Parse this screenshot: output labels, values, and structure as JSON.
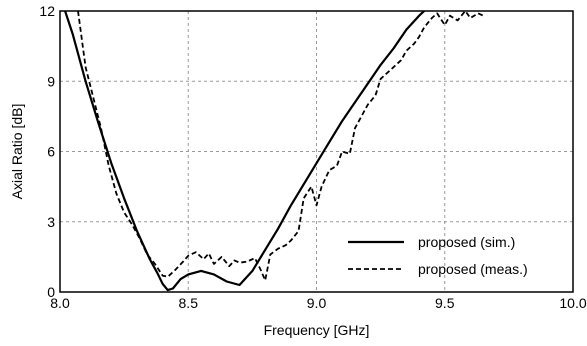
{
  "chart_data": {
    "type": "line",
    "title": "",
    "xlabel": "Frequency [GHz]",
    "ylabel": "Axial Ratio [dB]",
    "xlim": [
      8.0,
      10.0
    ],
    "ylim": [
      0,
      12
    ],
    "xticks": [
      "8.0",
      "8.5",
      "9.0",
      "9.5",
      "10.0"
    ],
    "yticks": [
      "0",
      "3",
      "6",
      "9",
      "12"
    ],
    "grid": true,
    "legend_position": "bottom-right",
    "series": [
      {
        "name": "proposed (sim.)",
        "style": "solid",
        "color": "#000000",
        "x": [
          8.02,
          8.05,
          8.1,
          8.15,
          8.2,
          8.25,
          8.3,
          8.35,
          8.38,
          8.4,
          8.42,
          8.44,
          8.47,
          8.5,
          8.55,
          8.6,
          8.65,
          8.7,
          8.75,
          8.8,
          8.85,
          8.9,
          8.95,
          9.0,
          9.05,
          9.1,
          9.15,
          9.2,
          9.25,
          9.3,
          9.35,
          9.4,
          9.42
        ],
        "y": [
          12.0,
          11.0,
          9.0,
          7.2,
          5.5,
          4.0,
          2.6,
          1.4,
          0.8,
          0.35,
          0.08,
          0.15,
          0.55,
          0.75,
          0.9,
          0.75,
          0.45,
          0.3,
          0.9,
          1.8,
          2.7,
          3.7,
          4.6,
          5.5,
          6.4,
          7.3,
          8.1,
          8.9,
          9.7,
          10.4,
          11.2,
          11.8,
          12.0
        ]
      },
      {
        "name": "proposed (meas.)",
        "style": "dashed",
        "color": "#000000",
        "x": [
          8.07,
          8.1,
          8.13,
          8.16,
          8.19,
          8.22,
          8.25,
          8.28,
          8.31,
          8.34,
          8.37,
          8.4,
          8.42,
          8.45,
          8.48,
          8.5,
          8.53,
          8.56,
          8.58,
          8.6,
          8.63,
          8.66,
          8.68,
          8.7,
          8.73,
          8.76,
          8.78,
          8.8,
          8.82,
          8.85,
          8.88,
          8.9,
          8.93,
          8.95,
          8.98,
          9.0,
          9.02,
          9.05,
          9.08,
          9.1,
          9.13,
          9.15,
          9.18,
          9.2,
          9.23,
          9.25,
          9.28,
          9.3,
          9.33,
          9.35,
          9.38,
          9.4,
          9.42,
          9.45,
          9.47,
          9.5,
          9.52,
          9.55,
          9.58,
          9.6,
          9.63,
          9.65
        ],
        "y": [
          12.0,
          9.6,
          8.3,
          7.0,
          5.4,
          4.2,
          3.4,
          2.9,
          2.3,
          1.6,
          1.2,
          0.7,
          0.65,
          0.95,
          1.3,
          1.55,
          1.7,
          1.4,
          1.65,
          1.2,
          1.5,
          1.1,
          1.35,
          1.25,
          1.3,
          1.45,
          1.0,
          0.5,
          1.6,
          1.85,
          2.0,
          2.2,
          2.6,
          4.0,
          4.5,
          3.7,
          4.5,
          5.2,
          5.4,
          6.0,
          5.9,
          7.0,
          7.6,
          8.0,
          8.4,
          9.1,
          9.4,
          9.6,
          9.9,
          10.3,
          10.6,
          10.9,
          11.3,
          11.7,
          11.9,
          11.4,
          11.8,
          11.6,
          12.0,
          11.7,
          11.9,
          11.8
        ]
      }
    ]
  }
}
